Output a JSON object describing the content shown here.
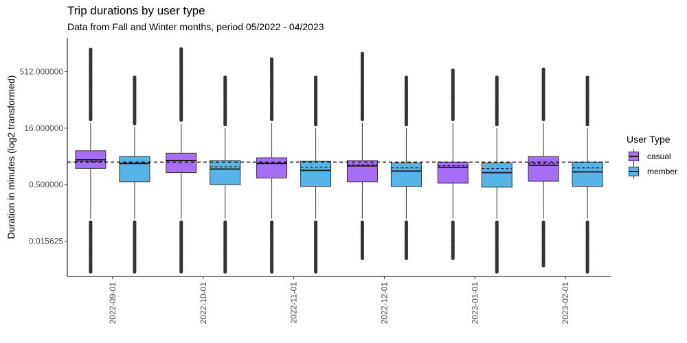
{
  "chart_data": {
    "type": "boxplot",
    "title": "Trip durations by user type",
    "subtitle": "Data from Fall and Winter months, period 05/2022 - 04/2023",
    "xlabel": "",
    "ylabel": "Duration in minutes (log2 transformed)",
    "y_scale": "log2",
    "y_ticks": [
      "0.015625",
      "0.500000",
      "16.000000",
      "512.000000"
    ],
    "ylim": [
      0.0018,
      4096
    ],
    "categories": [
      "2022-09-01",
      "2022-10-01",
      "2022-11-01",
      "2022-12-01",
      "2023-01-01",
      "2023-02-01"
    ],
    "reference_line": 2.0,
    "legend": {
      "title": "User Type",
      "placement": "right"
    },
    "series": [
      {
        "name": "casual",
        "color": "#A66EF5",
        "boxes": [
          {
            "lower_whisker": 0.0625,
            "q1": 1.36,
            "median": 2.3,
            "q3": 4.0,
            "upper_whisker": 22,
            "outlier_min": 0.0024,
            "outlier_max": 2000,
            "mean": 2.05
          },
          {
            "lower_whisker": 0.0625,
            "q1": 1.05,
            "median": 2.2,
            "q3": 3.45,
            "upper_whisker": 21,
            "outlier_min": 0.0024,
            "outlier_max": 2050,
            "mean": 2.15
          },
          {
            "lower_whisker": 0.0625,
            "q1": 0.75,
            "median": 1.85,
            "q3": 2.6,
            "upper_whisker": 22,
            "outlier_min": 0.0024,
            "outlier_max": 1100,
            "mean": 1.8
          },
          {
            "lower_whisker": 0.0625,
            "q1": 0.6,
            "median": 1.58,
            "q3": 2.2,
            "upper_whisker": 22,
            "outlier_min": 0.0055,
            "outlier_max": 1550,
            "mean": 1.7
          },
          {
            "lower_whisker": 0.0625,
            "q1": 0.55,
            "median": 1.45,
            "q3": 2.0,
            "upper_whisker": 22,
            "outlier_min": 0.0055,
            "outlier_max": 560,
            "mean": 1.6
          },
          {
            "lower_whisker": 0.0625,
            "q1": 0.62,
            "median": 1.65,
            "q3": 2.8,
            "upper_whisker": 22,
            "outlier_min": 0.0035,
            "outlier_max": 590,
            "mean": 1.85
          }
        ]
      },
      {
        "name": "member",
        "color": "#56B4E9",
        "boxes": [
          {
            "lower_whisker": 0.0625,
            "q1": 0.6,
            "median": 1.85,
            "q3": 2.8,
            "upper_whisker": 17,
            "outlier_min": 0.0024,
            "outlier_max": 360,
            "mean": 1.8
          },
          {
            "lower_whisker": 0.0625,
            "q1": 0.5,
            "median": 1.3,
            "q3": 2.2,
            "upper_whisker": 16,
            "outlier_min": 0.0024,
            "outlier_max": 360,
            "mean": 1.5
          },
          {
            "lower_whisker": 0.0625,
            "q1": 0.45,
            "median": 1.2,
            "q3": 2.1,
            "upper_whisker": 16,
            "outlier_min": 0.0024,
            "outlier_max": 360,
            "mean": 1.45
          },
          {
            "lower_whisker": 0.0625,
            "q1": 0.45,
            "median": 1.15,
            "q3": 1.9,
            "upper_whisker": 16,
            "outlier_min": 0.0055,
            "outlier_max": 360,
            "mean": 1.4
          },
          {
            "lower_whisker": 0.0625,
            "q1": 0.43,
            "median": 1.05,
            "q3": 1.9,
            "upper_whisker": 16,
            "outlier_min": 0.0024,
            "outlier_max": 360,
            "mean": 1.35
          },
          {
            "lower_whisker": 0.0625,
            "q1": 0.45,
            "median": 1.1,
            "q3": 2.0,
            "upper_whisker": 16,
            "outlier_min": 0.0024,
            "outlier_max": 360,
            "mean": 1.4
          }
        ]
      }
    ],
    "grid": false
  }
}
